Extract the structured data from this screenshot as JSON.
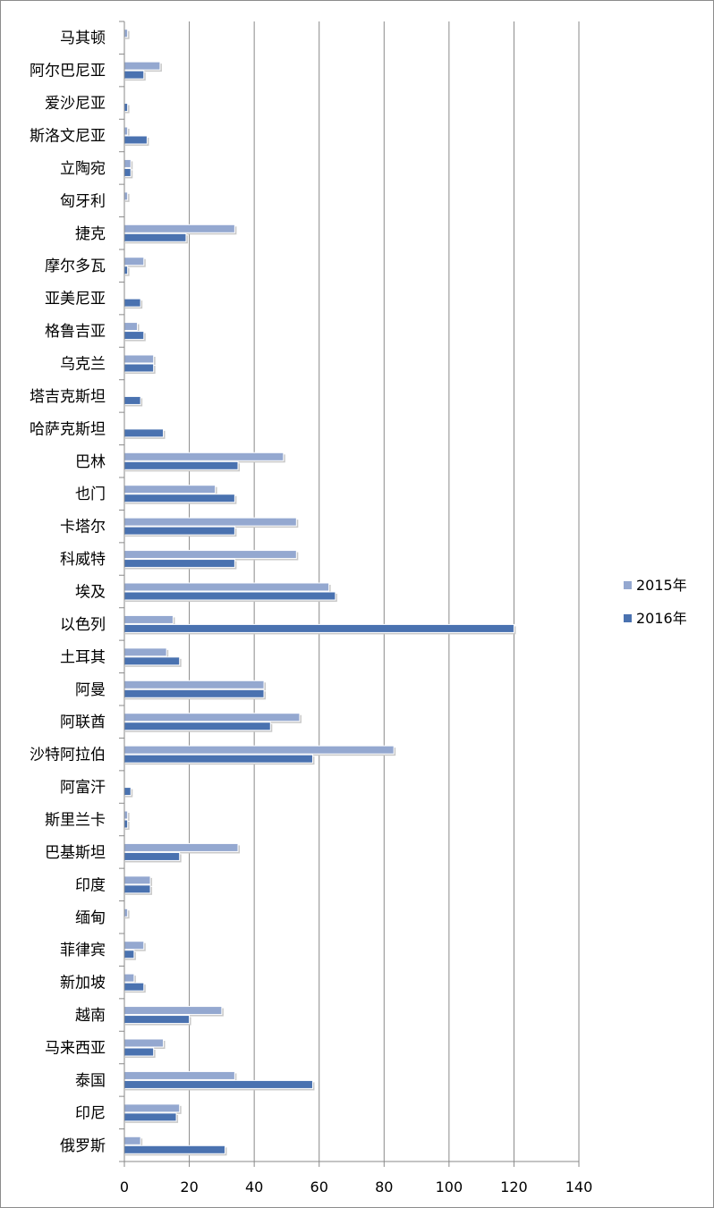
{
  "chart_data": {
    "type": "bar",
    "orientation": "horizontal",
    "categories": [
      "马其顿",
      "阿尔巴尼亚",
      "爱沙尼亚",
      "斯洛文尼亚",
      "立陶宛",
      "匈牙利",
      "捷克",
      "摩尔多瓦",
      "亚美尼亚",
      "格鲁吉亚",
      "乌克兰",
      "塔吉克斯坦",
      "哈萨克斯坦",
      "巴林",
      "也门",
      "卡塔尔",
      "科威特",
      "埃及",
      "以色列",
      "土耳其",
      "阿曼",
      "阿联酋",
      "沙特阿拉伯",
      "阿富汗",
      "斯里兰卡",
      "巴基斯坦",
      "印度",
      "缅甸",
      "菲律宾",
      "新加坡",
      "越南",
      "马来西亚",
      "泰国",
      "印尼",
      "俄罗斯"
    ],
    "series": [
      {
        "name": "2015年",
        "color": "#94a8d0",
        "values": [
          1,
          11,
          0,
          1,
          2,
          1,
          34,
          6,
          0,
          4,
          9,
          0,
          0,
          49,
          28,
          53,
          53,
          63,
          15,
          13,
          43,
          54,
          83,
          0,
          1,
          35,
          8,
          1,
          6,
          3,
          30,
          12,
          34,
          17,
          5
        ]
      },
      {
        "name": "2016年",
        "color": "#4a72b0",
        "values": [
          0,
          6,
          1,
          7,
          2,
          0,
          19,
          1,
          5,
          6,
          9,
          5,
          12,
          35,
          34,
          34,
          34,
          65,
          120,
          17,
          43,
          45,
          58,
          2,
          1,
          17,
          8,
          0,
          3,
          6,
          20,
          9,
          58,
          16,
          31
        ]
      }
    ],
    "x_ticks": [
      0,
      20,
      40,
      60,
      80,
      100,
      120,
      140
    ],
    "xlim": [
      0,
      140
    ],
    "grid": true,
    "legend_position": "right",
    "title": "",
    "xlabel": "",
    "ylabel": ""
  }
}
